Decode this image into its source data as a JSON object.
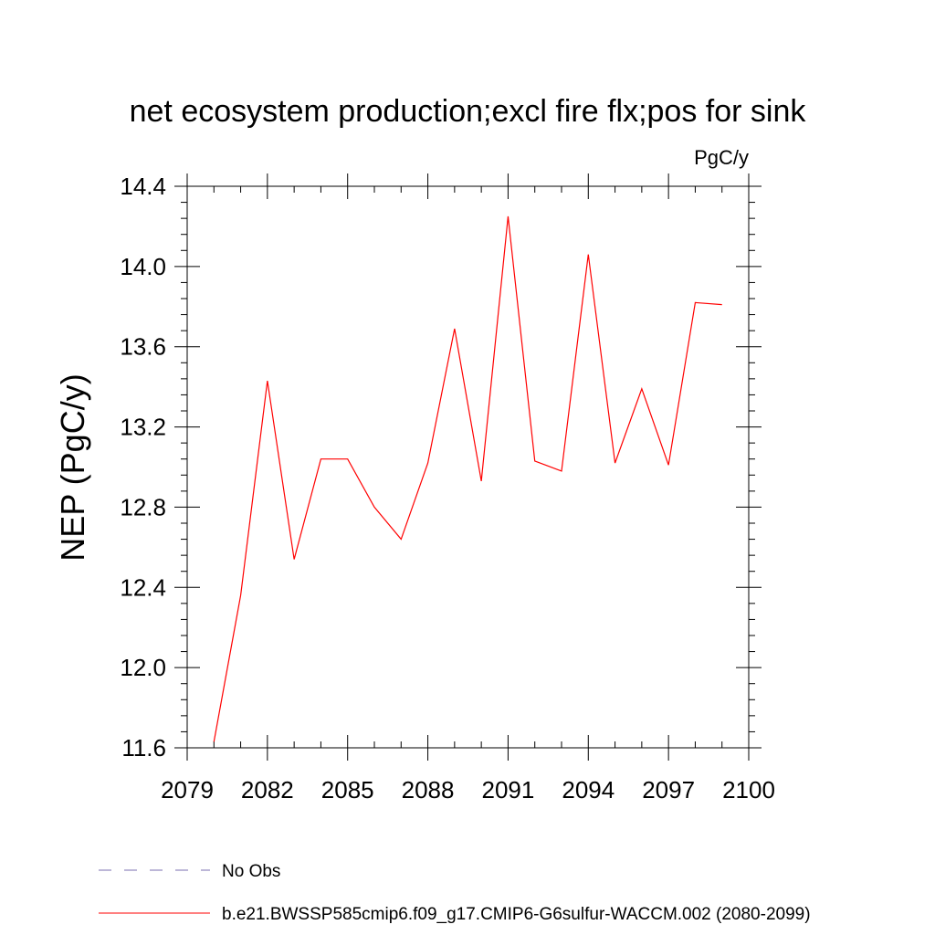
{
  "chart_data": {
    "type": "line",
    "title": "net ecosystem production;excl fire flx;pos for sink",
    "units": "PgC/y",
    "ylabel": "NEP  (PgC/y)",
    "xlabel": "",
    "xlim": [
      2079,
      2100
    ],
    "ylim": [
      11.6,
      14.4
    ],
    "x_ticks": [
      2079,
      2082,
      2085,
      2088,
      2091,
      2094,
      2097,
      2100
    ],
    "x_tick_labels": [
      "2079",
      "2082",
      "2085",
      "2088",
      "2091",
      "2094",
      "2097",
      "2100"
    ],
    "y_ticks": [
      11.6,
      12.0,
      12.4,
      12.8,
      13.2,
      13.6,
      14.0,
      14.4
    ],
    "y_tick_labels": [
      "11.6",
      "12.0",
      "12.4",
      "12.8",
      "13.2",
      "13.6",
      "14.0",
      "14.4"
    ],
    "grid": false,
    "legend_position": "bottom",
    "series": [
      {
        "name": "b.e21.BWSSP585cmip6.f09_g17.CMIP6-G6sulfur-WACCM.002 (2080-2099)",
        "color": "#ff0000",
        "line_style": "solid",
        "x": [
          2080,
          2081,
          2082,
          2083,
          2084,
          2085,
          2086,
          2087,
          2088,
          2089,
          2090,
          2091,
          2092,
          2093,
          2094,
          2095,
          2096,
          2097,
          2098,
          2099
        ],
        "y": [
          11.63,
          12.36,
          13.43,
          12.54,
          13.04,
          13.04,
          12.8,
          12.64,
          13.02,
          13.69,
          12.93,
          14.25,
          13.03,
          12.98,
          14.06,
          13.02,
          13.39,
          13.01,
          13.82,
          13.81
        ]
      }
    ],
    "legend": [
      {
        "label": "No Obs",
        "color": "#7b6fb0",
        "line_style": "dashed"
      },
      {
        "label": "b.e21.BWSSP585cmip6.f09_g17.CMIP6-G6sulfur-WACCM.002 (2080-2099)",
        "color": "#ff0000",
        "line_style": "solid"
      }
    ]
  }
}
